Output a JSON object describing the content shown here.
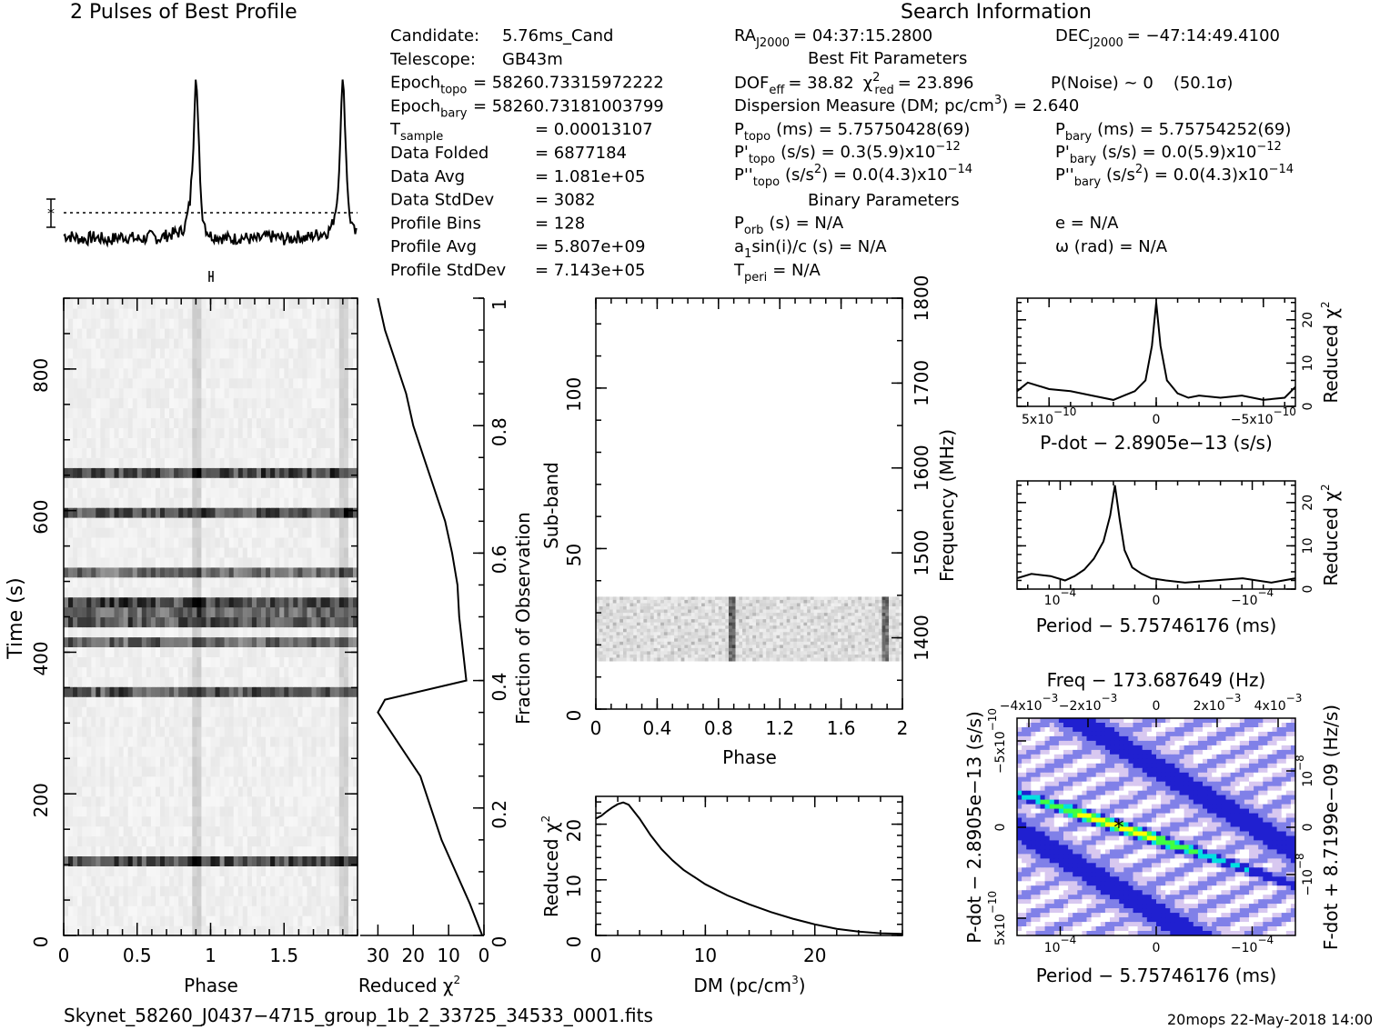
{
  "header": {
    "profile_title": "2 Pulses of Best Profile",
    "search_title": "Search Information",
    "best_fit_title": "Best Fit Parameters",
    "binary_title": "Binary Parameters"
  },
  "info_left": [
    {
      "k": "Candidate:",
      "v": "5.76ms_Cand"
    },
    {
      "k": "Telescope:",
      "v": "GB43m"
    },
    {
      "k": "Epoch",
      "sub": "topo",
      "v": "= 58260.73315972222"
    },
    {
      "k": "Epoch",
      "sub": "bary",
      "v": "= 58260.73181003799"
    },
    {
      "k": "T",
      "sub": "sample",
      "v": "=  0.00013107"
    },
    {
      "k": "Data Folded",
      "v": "=  6877184"
    },
    {
      "k": "Data Avg",
      "v": "=  1.081e+05"
    },
    {
      "k": "Data StdDev",
      "v": "=  3082"
    },
    {
      "k": "Profile Bins",
      "v": "=  128"
    },
    {
      "k": "Profile Avg",
      "v": "=  5.807e+09"
    },
    {
      "k": "Profile StdDev",
      "v": "=  7.143e+05"
    }
  ],
  "info_right": {
    "ra": "RA",
    "ra_sub": "J2000",
    "ra_val": "= 04:37:15.2800",
    "dec": "DEC",
    "dec_sub": "J2000",
    "dec_val": "= −47:14:49.4100",
    "dof": "DOF",
    "dof_sub": "eff",
    "dof_val": "= 38.82",
    "chi": "χ",
    "chi_sup": "2",
    "chi_sub": "red",
    "chi_val": "= 23.896",
    "pnoise": "P(Noise) ~ 0",
    "sigma": "(50.1σ)",
    "dm_line": "Dispersion Measure (DM; pc/cm",
    "dm_sup": "3",
    "dm_val": ") = 2.640",
    "ptopo": "P",
    "ptopo_sub": "topo",
    "ptopo_val": "(ms) =  5.75750428(69)",
    "pbary": "P",
    "pbary_sub": "bary",
    "pbary_val": "(ms) =  5.75754252(69)",
    "pdtopo": "P'",
    "pdtopo_sub": "topo",
    "pdtopo_val": "(s/s) =  0.3(5.9)x10",
    "pdtopo_exp": "−12",
    "pdbary": "P'",
    "pdbary_sub": "bary",
    "pdbary_val": "(s/s) = 0.0(5.9)x10",
    "pdbary_exp": "−12",
    "pddtopo": "P''",
    "pddtopo_sub": "topo",
    "pddtopo_val": "(s/s",
    "pddtopo_sup": "2",
    "pddtopo_val2": ") = 0.0(4.3)x10",
    "pddtopo_exp": "−14",
    "pddbary": "P''",
    "pddbary_sub": "bary",
    "pddbary_val": "(s/s",
    "pddbary_sup": "2",
    "pddbary_val2": ") = 0.0(4.3)x10",
    "pddbary_exp": "−14",
    "porb": "P",
    "porb_sub": "orb",
    "porb_val": "(s) = N/A",
    "ecc": "e = N/A",
    "asini": "a",
    "asini_sub": "1",
    "asini_val": "sin(i)/c (s) = N/A",
    "omega": "ω (rad) = N/A",
    "tperi": "T",
    "tperi_sub": "peri",
    "tperi_val": "= N/A"
  },
  "footer": {
    "filename": "Skynet_58260_J0437−4715_group_1b_2_33725_34533_0001.fits",
    "stamp": "20mops 22‐May‐2018 14:00"
  },
  "chart_data": [
    {
      "type": "line",
      "id": "profile",
      "title": "2 Pulses of Best Profile",
      "x": [
        0,
        0.05,
        0.1,
        0.15,
        0.2,
        0.25,
        0.3,
        0.35,
        0.4,
        0.45,
        0.5,
        0.55,
        0.6,
        0.65,
        0.7,
        0.75,
        0.8,
        0.83,
        0.86,
        0.88,
        0.9,
        0.92,
        0.94,
        0.97,
        1.0,
        1.05,
        1.1,
        1.15,
        1.2,
        1.25,
        1.3,
        1.35,
        1.4,
        1.45,
        1.5,
        1.55,
        1.6,
        1.65,
        1.7,
        1.75,
        1.8,
        1.83,
        1.86,
        1.88,
        1.9,
        1.92,
        1.94,
        1.97,
        2.0
      ],
      "values": [
        0.2,
        0.15,
        0.05,
        0.0,
        0.1,
        0.05,
        -0.05,
        0.05,
        0.15,
        0.1,
        0.0,
        0.05,
        0.15,
        0.05,
        0.2,
        0.3,
        0.4,
        0.8,
        2.0,
        4.5,
        9.2,
        5.0,
        1.5,
        0.5,
        0.2,
        0.15,
        0.05,
        0.0,
        0.1,
        0.05,
        -0.05,
        0.05,
        0.15,
        0.1,
        0.0,
        0.05,
        0.15,
        0.05,
        0.2,
        0.3,
        0.4,
        0.8,
        2.0,
        4.5,
        9.2,
        5.0,
        1.5,
        0.5,
        0.2
      ]
    },
    {
      "type": "heatmap",
      "id": "time-phase",
      "xlabel": "Phase",
      "ylabel": "Time (s)",
      "xlim": [
        0,
        2
      ],
      "ylim": [
        0,
        900
      ],
      "xticks": [
        "0",
        "0.5",
        "1",
        "1.5"
      ],
      "yticks": [
        "0",
        "200",
        "400",
        "600",
        "800"
      ],
      "dark_rows_time_s": [
        110,
        345,
        410,
        450,
        475,
        510,
        600,
        650
      ]
    },
    {
      "type": "line",
      "id": "time-chi2",
      "xlabel": "Reduced χ",
      "xlabel_sup": "2",
      "ylabel": "Fraction of Observation",
      "xlim": [
        35,
        0
      ],
      "ylim": [
        0,
        1
      ],
      "xticks": [
        "30",
        "20",
        "10",
        "0"
      ],
      "yticks": [
        "0",
        "0.2",
        "0.4",
        "0.6",
        "0.8",
        "1"
      ],
      "fraction": [
        0,
        0.05,
        0.1,
        0.15,
        0.2,
        0.25,
        0.3,
        0.35,
        0.37,
        0.4,
        0.45,
        0.5,
        0.55,
        0.6,
        0.65,
        0.7,
        0.75,
        0.8,
        0.85,
        0.9,
        0.95,
        1.0
      ],
      "values": [
        0.5,
        4,
        8,
        12,
        15,
        18,
        24,
        30,
        28,
        5,
        6,
        7,
        7.5,
        9,
        11,
        14,
        17,
        20,
        22,
        25,
        28,
        30
      ]
    },
    {
      "type": "heatmap",
      "id": "subband-phase",
      "xlabel": "Phase",
      "ylabel": "Sub-band",
      "y2label": "Frequency (MHz)",
      "xlim": [
        0,
        2
      ],
      "ylim": [
        0,
        128
      ],
      "xticks": [
        "0",
        "0.4",
        "0.8",
        "1.2",
        "1.6",
        "2"
      ],
      "yticks": [
        "0",
        "50",
        "100"
      ],
      "y2ticks": [
        "1400",
        "1500",
        "1600",
        "1700",
        "1800"
      ],
      "band_range": [
        15,
        35
      ]
    },
    {
      "type": "line",
      "id": "dm-chi2",
      "xlabel": "DM (pc/cm",
      "xlabel_sup": "3",
      "xlabel_end": ")",
      "ylabel": "Reduced χ",
      "ylabel_sup": "2",
      "xlim": [
        0,
        28
      ],
      "ylim": [
        0,
        25
      ],
      "xticks": [
        "0",
        "10",
        "20"
      ],
      "yticks": [
        "0",
        "10",
        "20"
      ],
      "x": [
        0,
        0.5,
        1,
        1.5,
        2,
        2.5,
        3,
        4,
        5,
        6,
        7,
        8,
        10,
        12,
        14,
        16,
        18,
        20,
        22,
        24,
        26,
        28
      ],
      "values": [
        21,
        21.5,
        22.3,
        23,
        23.6,
        23.9,
        23.5,
        21,
        18,
        15.5,
        13.5,
        11.8,
        9.2,
        7.2,
        5.6,
        4.2,
        3.0,
        2.0,
        1.2,
        0.7,
        0.4,
        0.3
      ]
    },
    {
      "type": "line",
      "id": "pdot-chi2",
      "xlabel": "P‐dot − 2.8905e−13 (s/s)",
      "ylabel": "Reduced χ",
      "ylabel_sup": "2",
      "xlim": [
        6.5e-10,
        -6.5e-10
      ],
      "ylim": [
        0,
        25
      ],
      "xticks": [
        "5x10",
        "0",
        "−5x10"
      ],
      "xticks_exp": [
        "−10",
        "",
        "−10"
      ],
      "yticks": [
        "0",
        "10",
        "20"
      ],
      "x": [
        6.5e-10,
        6e-10,
        5e-10,
        4e-10,
        3e-10,
        2e-10,
        1.5e-10,
        1e-10,
        5e-11,
        2e-11,
        0,
        -2e-11,
        -5e-11,
        -1e-10,
        -1.5e-10,
        -2e-10,
        -3e-10,
        -4e-10,
        -5e-10,
        -6e-10,
        -6.5e-10
      ],
      "values": [
        3.5,
        5.5,
        4.0,
        3.5,
        2.5,
        1.5,
        2.5,
        3.5,
        6,
        14,
        24,
        14,
        6,
        3,
        2,
        2.5,
        2,
        2.5,
        1.5,
        2,
        4.5
      ]
    },
    {
      "type": "line",
      "id": "period-chi2",
      "xlabel": "Period − 5.75746176 (ms)",
      "ylabel": "Reduced χ",
      "ylabel_sup": "2",
      "xlim": [
        0.000145,
        -0.000145
      ],
      "ylim": [
        0,
        25
      ],
      "xticks": [
        "10",
        "0",
        "−10"
      ],
      "xticks_exp": [
        "−4",
        "",
        "−4"
      ],
      "yticks": [
        "0",
        "10",
        "20"
      ],
      "x": [
        0.000145,
        0.00013,
        0.00011,
        9.5e-05,
        8.5e-05,
        7.5e-05,
        6.5e-05,
        5.5e-05,
        4.8e-05,
        4.3e-05,
        3.8e-05,
        3.3e-05,
        2.5e-05,
        1.5e-05,
        5e-06,
        -1e-05,
        -3e-05,
        -6e-05,
        -9e-05,
        -0.00012,
        -0.000145
      ],
      "values": [
        2.5,
        3.5,
        3,
        2,
        3,
        4.5,
        7,
        11,
        17,
        24,
        16,
        9,
        5,
        3.5,
        2.5,
        2,
        1.5,
        2,
        2.5,
        1.5,
        2.5
      ]
    },
    {
      "type": "heatmap",
      "id": "ppdot-plane",
      "title": "Freq − 173.687649 (Hz)",
      "xlabel": "Period − 5.75746176 (ms)",
      "ylabel": "P‐dot − 2.8905e−13 (s/s)",
      "y2label": "F‐dot + 8.7199e−09 (Hz/s)",
      "xticks": [
        "10",
        "0",
        "−10"
      ],
      "xticks_exp": [
        "−4",
        "",
        "−4"
      ],
      "x2ticks": [
        "−4x10",
        "−2x10",
        "0",
        "2x10",
        "4x10"
      ],
      "x2ticks_exp": [
        "−3",
        "−3",
        "",
        "−3",
        "−3"
      ],
      "yticks": [
        "5x10",
        "0",
        "−5x10"
      ],
      "yticks_exp": [
        "−10",
        "",
        "−10"
      ],
      "y2ticks": [
        "−10",
        "0",
        "10"
      ],
      "y2ticks_exp": [
        "−8",
        "",
        "−8"
      ],
      "peak_period": 3.9e-05,
      "peak_pdot": 0,
      "colors": [
        "#ffffff",
        "#d8c8f0",
        "#8080e8",
        "#2020d0",
        "#00e0e0",
        "#40ff40",
        "#ffff00"
      ]
    }
  ]
}
